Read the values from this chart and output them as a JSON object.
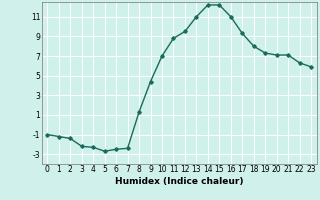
{
  "x": [
    0,
    1,
    2,
    3,
    4,
    5,
    6,
    7,
    8,
    9,
    10,
    11,
    12,
    13,
    14,
    15,
    16,
    17,
    18,
    19,
    20,
    21,
    22,
    23
  ],
  "y": [
    -1.0,
    -1.2,
    -1.4,
    -2.2,
    -2.3,
    -2.7,
    -2.5,
    -2.4,
    1.3,
    4.4,
    7.0,
    8.8,
    9.5,
    11.0,
    12.2,
    12.2,
    11.0,
    9.3,
    8.0,
    7.3,
    7.1,
    7.1,
    6.3,
    5.9
  ],
  "line_color": "#1a6b5a",
  "marker": "D",
  "marker_size": 1.8,
  "bg_color": "#cff0eb",
  "grid_color": "#ffffff",
  "xlabel": "Humidex (Indice chaleur)",
  "xlim": [
    -0.5,
    23.5
  ],
  "ylim": [
    -4,
    12.5
  ],
  "yticks": [
    -3,
    -1,
    1,
    3,
    5,
    7,
    9,
    11
  ],
  "xticks": [
    0,
    1,
    2,
    3,
    4,
    5,
    6,
    7,
    8,
    9,
    10,
    11,
    12,
    13,
    14,
    15,
    16,
    17,
    18,
    19,
    20,
    21,
    22,
    23
  ],
  "tick_fontsize": 5.5,
  "xlabel_fontsize": 6.5,
  "line_width": 1.0
}
